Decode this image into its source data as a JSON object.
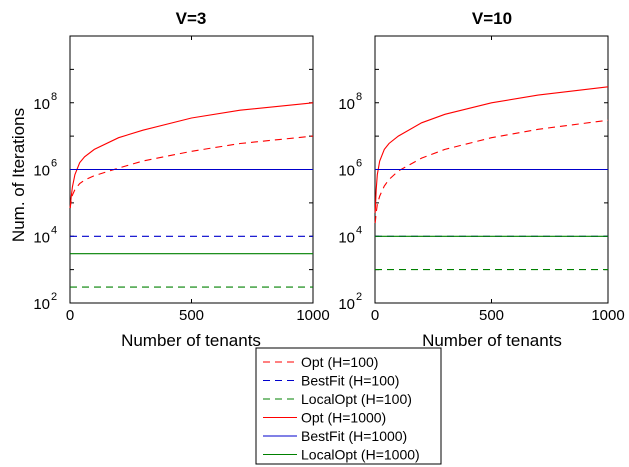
{
  "chart_data": [
    {
      "type": "line",
      "title": "V=3",
      "xlabel": "Number of tenants",
      "ylabel": "Num. of Iterations",
      "yscale": "log",
      "xlim": [
        0,
        1000
      ],
      "ylim": [
        100,
        10000000000
      ],
      "xticks": [
        "0",
        "500",
        "1000"
      ],
      "yticks": [
        {
          "base": "10",
          "exp": "2"
        },
        {
          "base": "10",
          "exp": "4"
        },
        {
          "base": "10",
          "exp": "6"
        },
        {
          "base": "10",
          "exp": "8"
        }
      ],
      "grid": false,
      "series": [
        {
          "name": "Opt (H=100)",
          "color": "#ff0000",
          "dash": "dashed",
          "x": [
            1,
            5,
            10,
            20,
            40,
            60,
            100,
            200,
            300,
            500,
            700,
            1000
          ],
          "y": [
            70000,
            120000,
            170000,
            250000,
            380000,
            480000,
            650000,
            1100000,
            1800000,
            3500000,
            6000000,
            10000000
          ]
        },
        {
          "name": "BestFit (H=100)",
          "color": "#0000cc",
          "dash": "dashed",
          "x": [
            0,
            1000
          ],
          "y": [
            10000,
            10000
          ]
        },
        {
          "name": "LocalOpt (H=100)",
          "color": "#008000",
          "dash": "dashed",
          "x": [
            0,
            1000
          ],
          "y": [
            300,
            300
          ]
        },
        {
          "name": "Opt (H=1000)",
          "color": "#ff0000",
          "dash": "solid",
          "x": [
            1,
            5,
            10,
            20,
            40,
            60,
            100,
            200,
            300,
            500,
            700,
            1000
          ],
          "y": [
            70000,
            150000,
            300000,
            700000,
            1600000,
            2400000,
            4000000,
            9000000,
            15000000,
            35000000,
            60000000,
            100000000
          ]
        },
        {
          "name": "BestFit (H=1000)",
          "color": "#0000cc",
          "dash": "solid",
          "x": [
            0,
            1000
          ],
          "y": [
            1000000,
            1000000
          ]
        },
        {
          "name": "LocalOpt (H=1000)",
          "color": "#008000",
          "dash": "solid",
          "x": [
            0,
            1000
          ],
          "y": [
            3000,
            3000
          ]
        }
      ]
    },
    {
      "type": "line",
      "title": "V=10",
      "xlabel": "Number of tenants",
      "ylabel": "",
      "yscale": "log",
      "xlim": [
        0,
        1000
      ],
      "ylim": [
        100,
        10000000000
      ],
      "xticks": [
        "0",
        "500",
        "1000"
      ],
      "yticks": [
        {
          "base": "10",
          "exp": "2"
        },
        {
          "base": "10",
          "exp": "4"
        },
        {
          "base": "10",
          "exp": "6"
        },
        {
          "base": "10",
          "exp": "8"
        }
      ],
      "grid": false,
      "series": [
        {
          "name": "Opt (H=100)",
          "color": "#ff0000",
          "dash": "dashed",
          "x": [
            1,
            5,
            10,
            20,
            40,
            60,
            100,
            200,
            300,
            500,
            700,
            1000
          ],
          "y": [
            25000,
            50000,
            90000,
            160000,
            320000,
            500000,
            900000,
            2200000,
            4000000,
            9000000,
            16000000,
            30000000
          ]
        },
        {
          "name": "BestFit (H=100)",
          "color": "#0000cc",
          "dash": "dashed",
          "x": [
            0,
            1000
          ],
          "y": [
            10000,
            10000
          ]
        },
        {
          "name": "LocalOpt (H=100)",
          "color": "#008000",
          "dash": "dashed",
          "x": [
            0,
            1000
          ],
          "y": [
            1000,
            1000
          ]
        },
        {
          "name": "Opt (H=1000)",
          "color": "#ff0000",
          "dash": "solid",
          "x": [
            1,
            5,
            10,
            20,
            40,
            60,
            100,
            200,
            300,
            500,
            700,
            1000
          ],
          "y": [
            50000,
            250000,
            700000,
            1800000,
            4000000,
            6000000,
            10000000,
            25000000,
            45000000,
            100000000,
            170000000,
            300000000
          ]
        },
        {
          "name": "BestFit (H=1000)",
          "color": "#0000cc",
          "dash": "solid",
          "x": [
            0,
            1000
          ],
          "y": [
            1000000,
            1000000
          ]
        },
        {
          "name": "LocalOpt (H=1000)",
          "color": "#008000",
          "dash": "solid",
          "x": [
            0,
            1000
          ],
          "y": [
            10000,
            10000
          ]
        }
      ]
    }
  ],
  "legend": {
    "placement": "bottom-center",
    "entries": [
      {
        "label": "Opt (H=100)",
        "color": "#ff0000",
        "dash": "dashed"
      },
      {
        "label": "BestFit (H=100)",
        "color": "#0000cc",
        "dash": "dashed"
      },
      {
        "label": "LocalOpt (H=100)",
        "color": "#008000",
        "dash": "dashed"
      },
      {
        "label": "Opt (H=1000)",
        "color": "#ff0000",
        "dash": "solid"
      },
      {
        "label": "BestFit (H=1000)",
        "color": "#0000cc",
        "dash": "solid"
      },
      {
        "label": "LocalOpt (H=1000)",
        "color": "#008000",
        "dash": "solid"
      }
    ]
  }
}
